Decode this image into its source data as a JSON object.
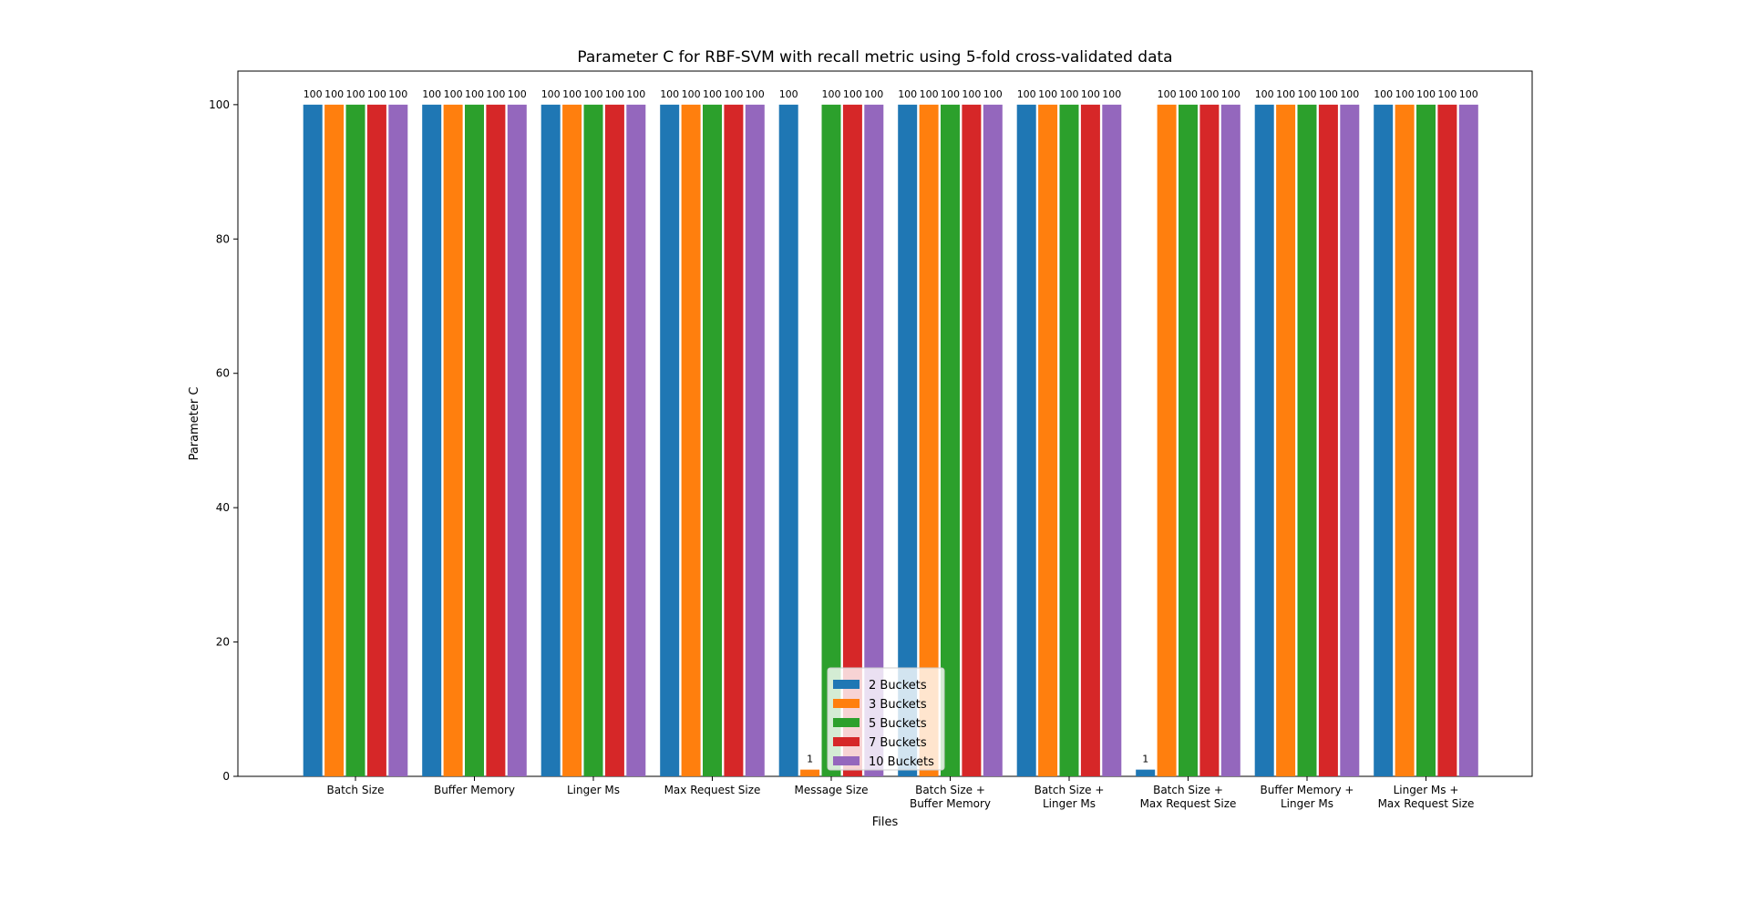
{
  "chart_data": {
    "type": "bar",
    "title": "Parameter C for RBF-SVM with recall metric using 5-fold cross-validated data",
    "xlabel": "Files",
    "ylabel": "Parameter C",
    "ylim": [
      0,
      105
    ],
    "yticks": [
      0,
      20,
      40,
      60,
      80,
      100
    ],
    "legend_position": "bottom-center",
    "grid": false,
    "categories": [
      [
        "Batch Size"
      ],
      [
        "Buffer Memory"
      ],
      [
        "Linger Ms"
      ],
      [
        "Max Request Size"
      ],
      [
        "Message Size"
      ],
      [
        "Batch Size +",
        "Buffer Memory"
      ],
      [
        "Batch Size +",
        "Linger Ms"
      ],
      [
        "Batch Size +",
        "Max Request Size"
      ],
      [
        "Buffer Memory +",
        "Linger Ms"
      ],
      [
        "Linger Ms +",
        "Max Request Size"
      ]
    ],
    "series": [
      {
        "name": "2 Buckets",
        "color": "#1f77b4",
        "values": [
          100,
          100,
          100,
          100,
          100,
          100,
          100,
          1,
          100,
          100
        ]
      },
      {
        "name": "3 Buckets",
        "color": "#ff7f0e",
        "values": [
          100,
          100,
          100,
          100,
          1,
          100,
          100,
          100,
          100,
          100
        ]
      },
      {
        "name": "5 Buckets",
        "color": "#2ca02c",
        "values": [
          100,
          100,
          100,
          100,
          100,
          100,
          100,
          100,
          100,
          100
        ]
      },
      {
        "name": "7 Buckets",
        "color": "#d62728",
        "values": [
          100,
          100,
          100,
          100,
          100,
          100,
          100,
          100,
          100,
          100
        ]
      },
      {
        "name": "10 Buckets",
        "color": "#9467bd",
        "values": [
          100,
          100,
          100,
          100,
          100,
          100,
          100,
          100,
          100,
          100
        ]
      }
    ]
  }
}
